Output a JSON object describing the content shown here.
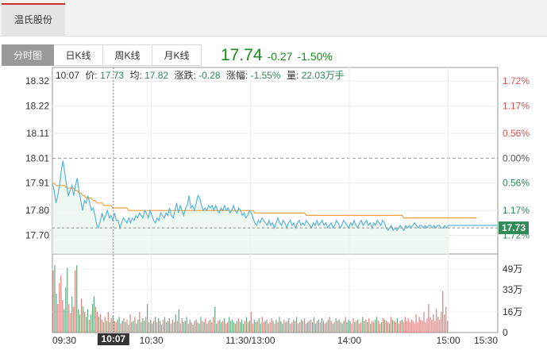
{
  "stock_tab": {
    "label": "温氏股份"
  },
  "period_tabs": [
    {
      "label": "分时图",
      "active": true
    },
    {
      "label": "日K线",
      "active": false
    },
    {
      "label": "周K线",
      "active": false
    },
    {
      "label": "月K线",
      "active": false
    }
  ],
  "quote": {
    "price": "17.74",
    "change": "-0.27",
    "change_pct": "-1.50%"
  },
  "info_bar": {
    "time": "10:07",
    "price_label": "价:",
    "price": "17.73",
    "avg_label": "均:",
    "avg": "17.82",
    "change_label": "涨跌:",
    "change": "-0.28",
    "pct_label": "涨幅:",
    "pct": "-1.55%",
    "vol_label": "量:",
    "vol": "22.03万手"
  },
  "cursor_time_label": "10:07",
  "current_price_tag": "17.73",
  "colors": {
    "price_line": "#5ab4d8",
    "avg_line": "#f0a040",
    "up": "#d9534f",
    "down": "#2e8b57",
    "fill": "#e8f5ea"
  },
  "chart_data": {
    "type": "line",
    "prev_close": 18.01,
    "y_ticks": [
      18.32,
      18.22,
      18.11,
      18.01,
      17.91,
      17.8,
      17.7
    ],
    "y_tick_labels": [
      "18.32",
      "18.22",
      "18.11",
      "18.01",
      "17.91",
      "17.80",
      "17.70"
    ],
    "right_pct_labels": [
      "1.72%",
      "1.17%",
      "0.56%",
      "0.00%",
      "0.56%",
      "1.17%",
      "1.72%"
    ],
    "ylim": [
      17.625,
      18.375
    ],
    "x_tick_labels": [
      "09:30",
      "10:30",
      "11:30/13:00",
      "14:00",
      "15:00",
      "15:30"
    ],
    "x_tick_minutes": [
      0,
      60,
      120,
      180,
      240,
      270
    ],
    "total_minutes": 270,
    "volume_ticks": [
      49,
      33,
      16,
      0
    ],
    "volume_tick_labels": [
      "49万",
      "33万",
      "16万",
      "0"
    ],
    "volume_max": 57,
    "series": [
      {
        "name": "价",
        "values": [
          17.91,
          17.88,
          17.83,
          17.86,
          17.9,
          17.96,
          18.0,
          17.95,
          17.9,
          17.86,
          17.88,
          17.9,
          17.86,
          17.9,
          17.93,
          17.88,
          17.84,
          17.8,
          17.84,
          17.83,
          17.86,
          17.83,
          17.8,
          17.81,
          17.78,
          17.74,
          17.73,
          17.76,
          17.79,
          17.76,
          17.78,
          17.8,
          17.77,
          17.78,
          17.76,
          17.79,
          17.76,
          17.76,
          17.73,
          17.75,
          17.77,
          17.76,
          17.75,
          17.77,
          17.75,
          17.77,
          17.76,
          17.78,
          17.77,
          17.79,
          17.78,
          17.77,
          17.8,
          17.79,
          17.77,
          17.8,
          17.78,
          17.76,
          17.75,
          17.77,
          17.76,
          17.79,
          17.78,
          17.77,
          17.79,
          17.78,
          17.81,
          17.78,
          17.77,
          17.8,
          17.83,
          17.79,
          17.82,
          17.8,
          17.78,
          17.81,
          17.82,
          17.86,
          17.81,
          17.82,
          17.8,
          17.83,
          17.86,
          17.85,
          17.82,
          17.8,
          17.81,
          17.8,
          17.82,
          17.81,
          17.82,
          17.8,
          17.82,
          17.8,
          17.79,
          17.81,
          17.8,
          17.82,
          17.8,
          17.81,
          17.79,
          17.8,
          17.82,
          17.8,
          17.79,
          17.81,
          17.8,
          17.78,
          17.79,
          17.77,
          17.78,
          17.8,
          17.79,
          17.77,
          17.75,
          17.74,
          17.76,
          17.75,
          17.77,
          17.76,
          17.75,
          17.74,
          17.76,
          17.74,
          17.75,
          17.73,
          17.75,
          17.77,
          17.75,
          17.74,
          17.76,
          17.75,
          17.73,
          17.75,
          17.76,
          17.74,
          17.75,
          17.73,
          17.75,
          17.76,
          17.74,
          17.75,
          17.74,
          17.76,
          17.75,
          17.74,
          17.73,
          17.75,
          17.74,
          17.76,
          17.74,
          17.75,
          17.76,
          17.74,
          17.75,
          17.73,
          17.74,
          17.75,
          17.73,
          17.74,
          17.76,
          17.75,
          17.73,
          17.74,
          17.76,
          17.75,
          17.74,
          17.73,
          17.75,
          17.74,
          17.76,
          17.74,
          17.73,
          17.75,
          17.76,
          17.74,
          17.75,
          17.76,
          17.74,
          17.75,
          17.73,
          17.75,
          17.74,
          17.76,
          17.75,
          17.74,
          17.76,
          17.75,
          17.73,
          17.72,
          17.73,
          17.74,
          17.72,
          17.73,
          17.72,
          17.73,
          17.74,
          17.73,
          17.72,
          17.74,
          17.73,
          17.74,
          17.73,
          17.74,
          17.75,
          17.74,
          17.73,
          17.74,
          17.74,
          17.73,
          17.74,
          17.73,
          17.74,
          17.74,
          17.73,
          17.74,
          17.73,
          17.74,
          17.74,
          17.73,
          17.73,
          17.74,
          17.73,
          17.74
        ],
        "color": "#5ab4d8"
      },
      {
        "name": "均",
        "values": [
          17.91,
          17.91,
          17.9,
          17.9,
          17.9,
          17.9,
          17.9,
          17.9,
          17.89,
          17.89,
          17.89,
          17.89,
          17.89,
          17.88,
          17.88,
          17.87,
          17.87,
          17.86,
          17.86,
          17.85,
          17.85,
          17.85,
          17.85,
          17.84,
          17.84,
          17.83,
          17.83,
          17.83,
          17.83,
          17.82,
          17.82,
          17.82,
          17.82,
          17.82,
          17.81,
          17.81,
          17.81,
          17.81,
          17.81,
          17.81,
          17.81,
          17.81,
          17.81,
          17.8,
          17.8,
          17.8,
          17.8,
          17.8,
          17.8,
          17.8,
          17.8,
          17.8,
          17.8,
          17.8,
          17.8,
          17.8,
          17.8,
          17.8,
          17.8,
          17.8,
          17.8,
          17.8,
          17.8,
          17.8,
          17.8,
          17.8,
          17.8,
          17.8,
          17.8,
          17.8,
          17.8,
          17.8,
          17.8,
          17.8,
          17.8,
          17.8,
          17.8,
          17.8,
          17.8,
          17.8,
          17.8,
          17.8,
          17.8,
          17.8,
          17.8,
          17.8,
          17.8,
          17.8,
          17.8,
          17.8,
          17.8,
          17.8,
          17.8,
          17.8,
          17.8,
          17.8,
          17.8,
          17.8,
          17.8,
          17.8,
          17.8,
          17.8,
          17.8,
          17.8,
          17.8,
          17.8,
          17.8,
          17.8,
          17.8,
          17.8,
          17.8,
          17.8,
          17.8,
          17.8,
          17.79,
          17.79,
          17.79,
          17.79,
          17.79,
          17.79,
          17.79,
          17.79,
          17.79,
          17.79,
          17.79,
          17.79,
          17.79,
          17.79,
          17.79,
          17.79,
          17.79,
          17.79,
          17.79,
          17.79,
          17.79,
          17.79,
          17.79,
          17.79,
          17.79,
          17.79,
          17.79,
          17.79,
          17.79,
          17.78,
          17.78,
          17.78,
          17.78,
          17.78,
          17.78,
          17.78,
          17.78,
          17.78,
          17.78,
          17.78,
          17.78,
          17.78,
          17.78,
          17.78,
          17.78,
          17.78,
          17.78,
          17.78,
          17.78,
          17.78,
          17.78,
          17.78,
          17.78,
          17.78,
          17.78,
          17.78,
          17.78,
          17.78,
          17.78,
          17.78,
          17.78,
          17.78,
          17.78,
          17.78,
          17.78,
          17.78,
          17.78,
          17.78,
          17.78,
          17.78,
          17.78,
          17.78,
          17.78,
          17.78,
          17.78,
          17.78,
          17.78,
          17.78,
          17.78,
          17.78,
          17.78,
          17.78,
          17.78,
          17.78,
          17.77,
          17.77,
          17.77,
          17.77,
          17.77,
          17.77,
          17.77,
          17.77,
          17.77,
          17.77,
          17.77,
          17.77,
          17.77,
          17.77,
          17.77,
          17.77,
          17.77,
          17.77,
          17.77,
          17.77,
          17.77,
          17.77,
          17.77,
          17.77,
          17.77,
          17.77,
          17.77,
          17.77,
          17.77,
          17.77,
          17.77,
          17.77,
          17.77,
          17.77,
          17.77,
          17.77,
          17.77,
          17.77,
          17.77,
          17.77,
          17.77,
          17.77
        ],
        "color": "#f0a040"
      }
    ],
    "volume": [
      48,
      52,
      30,
      22,
      38,
      44,
      25,
      18,
      35,
      50,
      22,
      15,
      28,
      20,
      48,
      52,
      18,
      14,
      26,
      20,
      16,
      12,
      18,
      10,
      14,
      22,
      28,
      20,
      16,
      12,
      14,
      10,
      8,
      12,
      9,
      16,
      8,
      11,
      13,
      9,
      8,
      10,
      12,
      7,
      9,
      11,
      8,
      10,
      6,
      14,
      8,
      9,
      12,
      7,
      10,
      16,
      8,
      11,
      9,
      12,
      22,
      8,
      10,
      7,
      9,
      12,
      8,
      11,
      9,
      6,
      10,
      12,
      8,
      9,
      11,
      7,
      10,
      8,
      14,
      9,
      18,
      7,
      11,
      8,
      9,
      12,
      7,
      10,
      8,
      6,
      9,
      10,
      8,
      7,
      12,
      9,
      8,
      11,
      7,
      9,
      10,
      8,
      12,
      20,
      7,
      9,
      10,
      8,
      9,
      11,
      7,
      8,
      12,
      9,
      10,
      8,
      7,
      9,
      11,
      8,
      10,
      7,
      9,
      12,
      8,
      9,
      16,
      7,
      10,
      8,
      9,
      11,
      7,
      12,
      8,
      9,
      10,
      7,
      8,
      11,
      9,
      7,
      10,
      8,
      12,
      9,
      7,
      10,
      8,
      9,
      11,
      7,
      8,
      10,
      9,
      12,
      7,
      8,
      10,
      9,
      11,
      7,
      8,
      9,
      10,
      8,
      12,
      7,
      9,
      10,
      8,
      11,
      9,
      7,
      8,
      10,
      12,
      9,
      7,
      8,
      11,
      9,
      10,
      8,
      7,
      9,
      12,
      8,
      10,
      9,
      7,
      11,
      8,
      9,
      10,
      7,
      8,
      12,
      9,
      10,
      8,
      11,
      7,
      9,
      8,
      10,
      12,
      9,
      7,
      8,
      11,
      10,
      9,
      8,
      7,
      12,
      10,
      9,
      8,
      11,
      7,
      9,
      10,
      8,
      12,
      9,
      11,
      8,
      10,
      9,
      7,
      14,
      8,
      12,
      10,
      9,
      16,
      8,
      11,
      22,
      12,
      10,
      14,
      9,
      18,
      12,
      10,
      16,
      32,
      14,
      20,
      9
    ],
    "volume_up_flags": "mixed"
  }
}
